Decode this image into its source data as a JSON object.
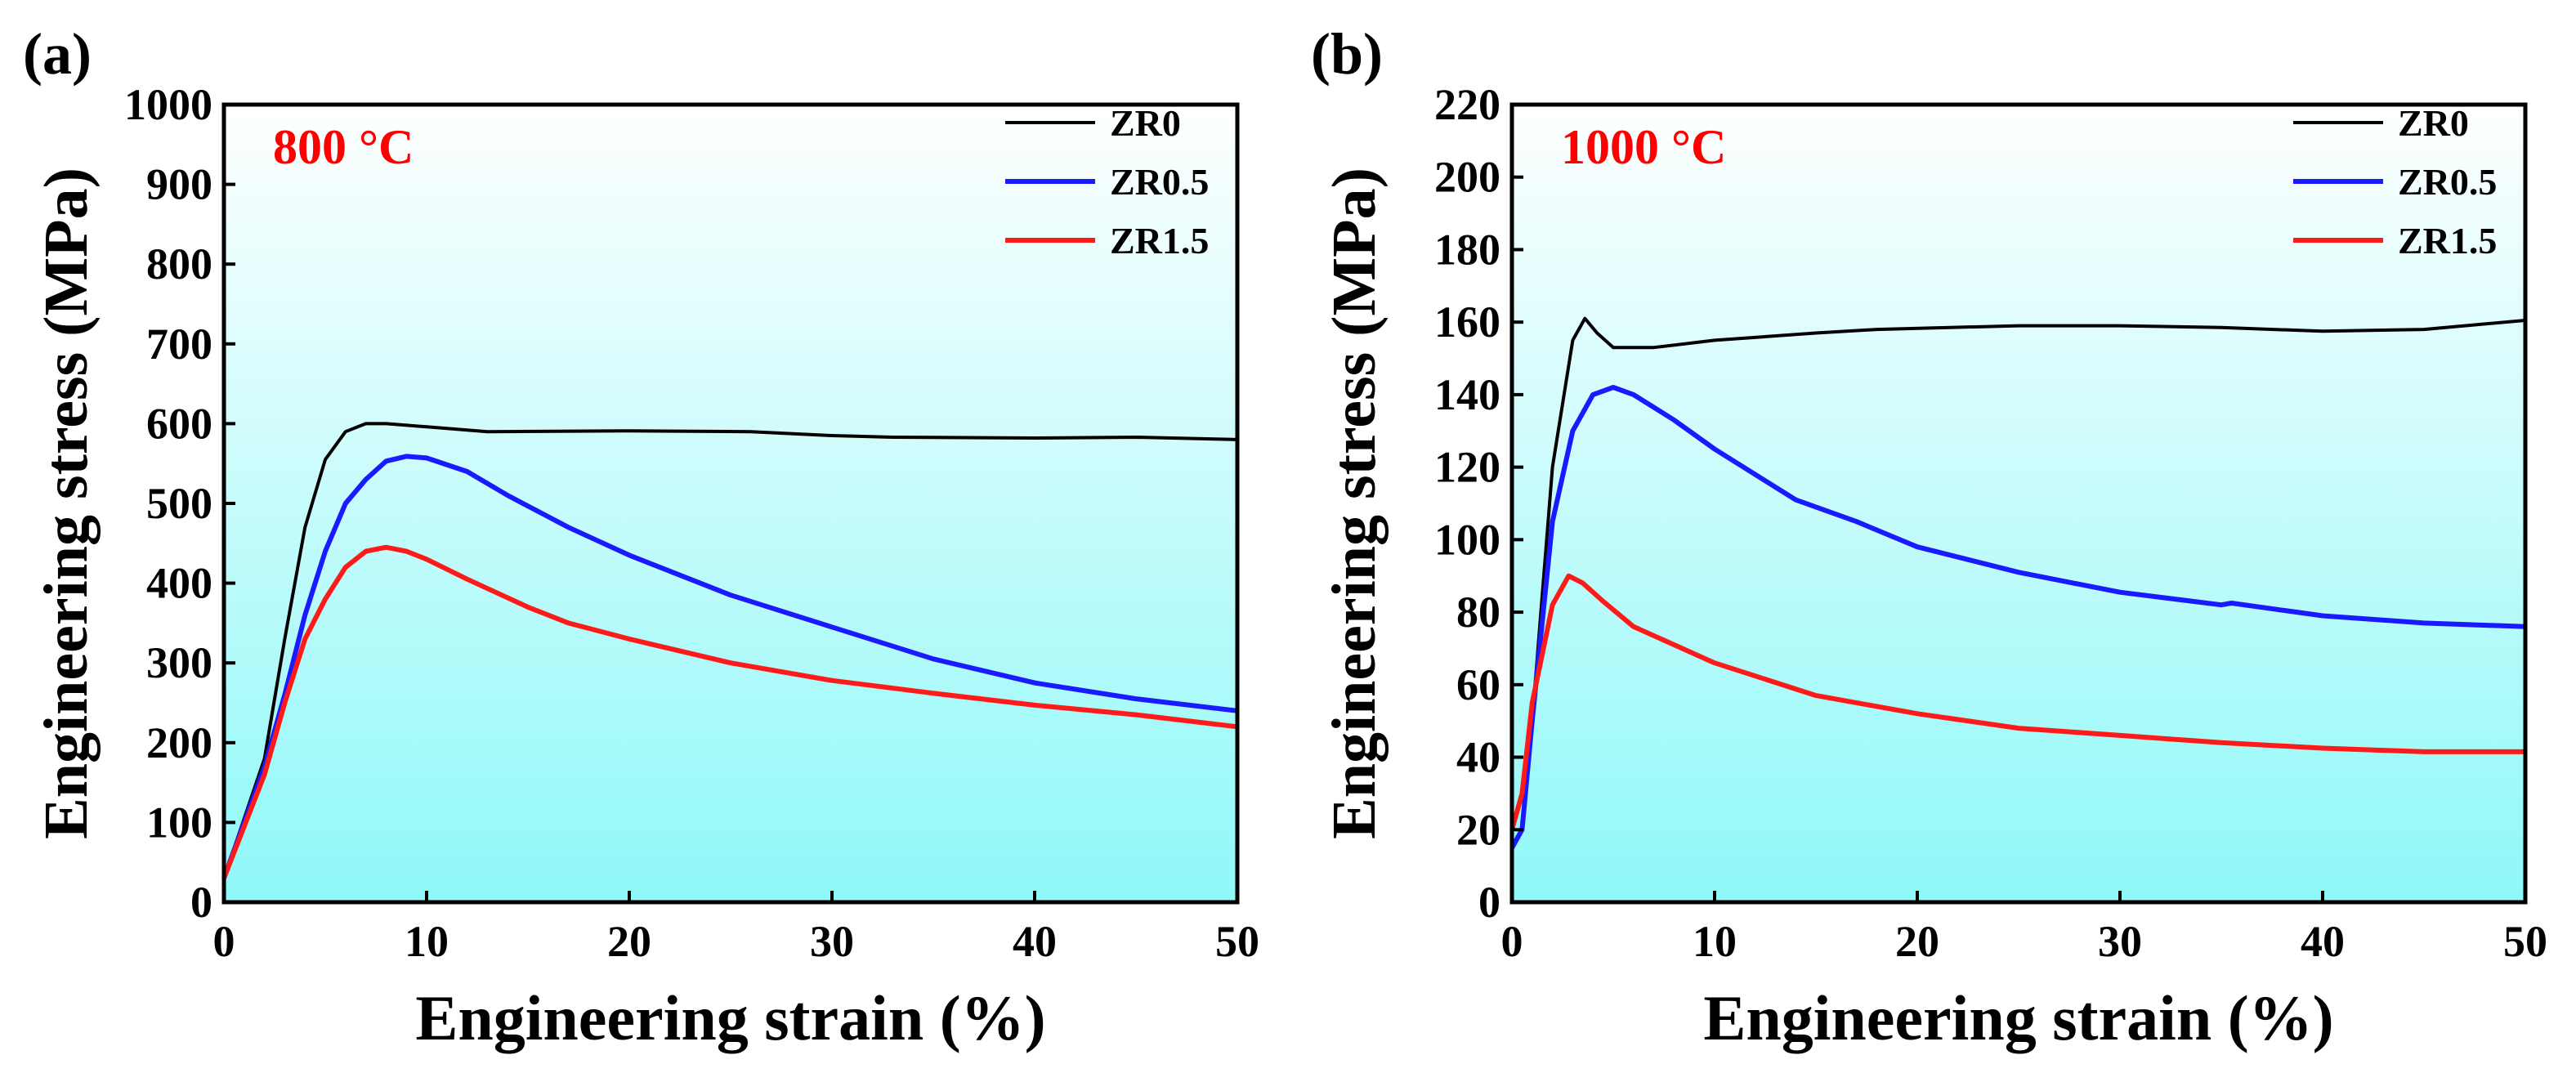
{
  "colors": {
    "ZR0": "#000000",
    "ZR0.5": "#1a1aff",
    "ZR1.5": "#ff1a1a",
    "temp_label": "#ff0000",
    "bg_top": "#ffffff",
    "bg_bottom": "#8ff8f8"
  },
  "chart_data": [
    {
      "type": "line",
      "panel_label": "(a)",
      "annotation": "800 °C",
      "xlabel": "Engineering strain (%)",
      "ylabel": "Engineering stress (MPa)",
      "xlim": [
        0,
        50
      ],
      "ylim": [
        0,
        1000
      ],
      "xticks": [
        0,
        10,
        20,
        30,
        40,
        50
      ],
      "yticks": [
        0,
        100,
        200,
        300,
        400,
        500,
        600,
        700,
        800,
        900,
        1000
      ],
      "grid": false,
      "legend_position": "top-right",
      "series": [
        {
          "name": "ZR0",
          "x": [
            0,
            2,
            3,
            4,
            5,
            6,
            7,
            8,
            10,
            13,
            20,
            26,
            30,
            33,
            40,
            45,
            50
          ],
          "y": [
            30,
            180,
            330,
            470,
            555,
            590,
            600,
            600,
            596,
            590,
            591,
            590,
            585,
            583,
            582,
            583,
            580
          ]
        },
        {
          "name": "ZR0.5",
          "x": [
            0,
            2,
            3,
            4,
            5,
            6,
            7,
            8,
            9,
            10,
            12,
            14,
            17,
            20,
            25,
            30,
            35,
            40,
            45,
            50
          ],
          "y": [
            30,
            170,
            260,
            360,
            440,
            500,
            530,
            553,
            559,
            557,
            540,
            510,
            470,
            435,
            385,
            345,
            305,
            275,
            255,
            240
          ]
        },
        {
          "name": "ZR1.5",
          "x": [
            0,
            2,
            3,
            4,
            5,
            6,
            7,
            8,
            9,
            10,
            12,
            15,
            17,
            20,
            25,
            30,
            35,
            40,
            45,
            50
          ],
          "y": [
            30,
            160,
            250,
            330,
            380,
            420,
            440,
            445,
            440,
            430,
            405,
            370,
            350,
            330,
            300,
            278,
            262,
            247,
            235,
            220
          ]
        }
      ]
    },
    {
      "type": "line",
      "panel_label": "(b)",
      "annotation": "1000 °C",
      "xlabel": "Engineering strain (%)",
      "ylabel": "Engineering stress (MPa)",
      "xlim": [
        0,
        50
      ],
      "ylim": [
        0,
        220
      ],
      "xticks": [
        0,
        10,
        20,
        30,
        40,
        50
      ],
      "yticks": [
        0,
        20,
        40,
        60,
        80,
        100,
        120,
        140,
        160,
        180,
        200,
        220
      ],
      "grid": false,
      "legend_position": "top-right",
      "series": [
        {
          "name": "ZR0",
          "x": [
            0,
            0.5,
            1,
            2,
            3,
            3.6,
            4.2,
            5,
            7,
            10,
            15,
            18,
            25,
            30,
            35,
            40,
            45,
            50
          ],
          "y": [
            15,
            20,
            50,
            120,
            155,
            161,
            157,
            153,
            153,
            155,
            157,
            158,
            159,
            159,
            158.5,
            157.5,
            158,
            160.5
          ]
        },
        {
          "name": "ZR0.5",
          "x": [
            0,
            0.5,
            1,
            2,
            3,
            4,
            5,
            6,
            8,
            10,
            14,
            17,
            20,
            25,
            30,
            35,
            35.5,
            40,
            45,
            50
          ],
          "y": [
            15,
            20,
            50,
            105,
            130,
            140,
            142,
            140,
            133,
            125,
            111,
            105,
            98,
            91,
            85.5,
            82,
            82.5,
            79,
            77,
            76
          ]
        },
        {
          "name": "ZR1.5",
          "x": [
            0,
            0.5,
            1,
            2,
            2.8,
            3.5,
            4.5,
            6,
            8,
            10,
            15,
            20,
            25,
            30,
            35,
            40,
            45,
            50
          ],
          "y": [
            20,
            30,
            55,
            82,
            90,
            88,
            83,
            76,
            71,
            66,
            57,
            52,
            48,
            46,
            44,
            42.5,
            41.5,
            41.5
          ]
        }
      ]
    }
  ]
}
